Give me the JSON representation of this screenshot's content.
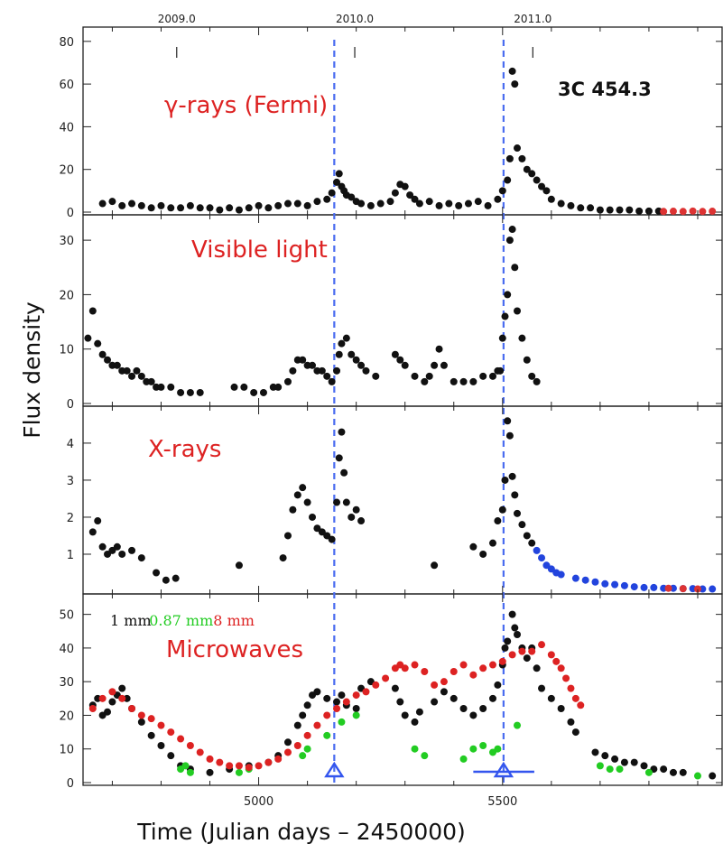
{
  "chart_data": {
    "type": "scatter",
    "source": "3C 454.3",
    "xlabel": "Time (Julian days – 2450000)",
    "ylabel": "Flux density",
    "xlim": [
      4640,
      5950
    ],
    "x_ticks": [
      5000,
      5500
    ],
    "top_axis": {
      "labels": [
        "2009.0",
        "2010.0",
        "2011.0"
      ],
      "x": [
        4832,
        5197,
        5562
      ]
    },
    "event_lines_x": [
      5155,
      5502
    ],
    "triangle_markers": [
      {
        "x": 5155,
        "error_bar": false
      },
      {
        "x": 5502,
        "error_bar": true,
        "x_range": [
          5440,
          5565
        ]
      }
    ],
    "panels": [
      {
        "title": "γ-rays (Fermi)",
        "ylim": [
          0,
          85
        ],
        "yticks": [
          0,
          20,
          40,
          60,
          80
        ],
        "yticklabels": [
          "0",
          "20",
          "40",
          "60",
          "80"
        ],
        "series": [
          {
            "color": "#111111",
            "x": [
              4680,
              4700,
              4720,
              4740,
              4760,
              4780,
              4800,
              4820,
              4840,
              4860,
              4880,
              4900,
              4920,
              4940,
              4960,
              4980,
              5000,
              5020,
              5040,
              5060,
              5080,
              5100,
              5120,
              5140,
              5150,
              5160,
              5165,
              5170,
              5175,
              5180,
              5190,
              5200,
              5210,
              5230,
              5250,
              5270,
              5280,
              5290,
              5300,
              5310,
              5320,
              5330,
              5350,
              5370,
              5390,
              5410,
              5430,
              5450,
              5470,
              5490,
              5500,
              5510,
              5515,
              5520,
              5525,
              5530,
              5540,
              5550,
              5560,
              5570,
              5580,
              5590,
              5600,
              5620,
              5640,
              5660,
              5680,
              5700,
              5720,
              5740,
              5760,
              5780,
              5800,
              5820
            ],
            "y": [
              4,
              5,
              3,
              4,
              3,
              2,
              3,
              2,
              2,
              3,
              2,
              2,
              1,
              2,
              1,
              2,
              3,
              2,
              3,
              4,
              4,
              3,
              5,
              6,
              9,
              14,
              18,
              12,
              10,
              8,
              7,
              5,
              4,
              3,
              4,
              5,
              9,
              13,
              12,
              8,
              6,
              4,
              5,
              3,
              4,
              3,
              4,
              5,
              3,
              6,
              10,
              15,
              25,
              66,
              60,
              30,
              25,
              20,
              18,
              15,
              12,
              10,
              6,
              4,
              3,
              2,
              2,
              1,
              1,
              1,
              1,
              0.5,
              0.5,
              0.5
            ]
          },
          {
            "color": "#dd3333",
            "x": [
              5830,
              5850,
              5870,
              5890,
              5910,
              5930
            ],
            "y": [
              0.3,
              0.4,
              0.3,
              0.5,
              0.3,
              0.4
            ]
          }
        ]
      },
      {
        "title": "Visible light",
        "ylim": [
          0,
          34
        ],
        "yticks": [
          0,
          10,
          20,
          30
        ],
        "yticklabels": [
          "0",
          "10",
          "20",
          "30"
        ],
        "series": [
          {
            "color": "#111111",
            "x": [
              4650,
              4660,
              4670,
              4680,
              4690,
              4700,
              4710,
              4720,
              4730,
              4740,
              4750,
              4760,
              4770,
              4780,
              4790,
              4800,
              4820,
              4840,
              4860,
              4880,
              4950,
              4970,
              4990,
              5010,
              5030,
              5040,
              5060,
              5070,
              5080,
              5090,
              5100,
              5110,
              5120,
              5130,
              5140,
              5150,
              5160,
              5165,
              5170,
              5180,
              5190,
              5200,
              5210,
              5220,
              5240,
              5280,
              5290,
              5300,
              5320,
              5340,
              5350,
              5360,
              5370,
              5380,
              5400,
              5420,
              5440,
              5460,
              5480,
              5490,
              5495,
              5500,
              5505,
              5510,
              5515,
              5520,
              5525,
              5530,
              5540,
              5550,
              5560,
              5570
            ],
            "y": [
              12,
              17,
              11,
              9,
              8,
              7,
              7,
              6,
              6,
              5,
              6,
              5,
              4,
              4,
              3,
              3,
              3,
              2,
              2,
              2,
              3,
              3,
              2,
              2,
              3,
              3,
              4,
              6,
              8,
              8,
              7,
              7,
              6,
              6,
              5,
              4,
              6,
              9,
              11,
              12,
              9,
              8,
              7,
              6,
              5,
              9,
              8,
              7,
              5,
              4,
              5,
              7,
              10,
              7,
              4,
              4,
              4,
              5,
              5,
              6,
              6,
              12,
              16,
              20,
              30,
              32,
              25,
              17,
              12,
              8,
              5,
              4
            ]
          }
        ]
      },
      {
        "title": "X-rays",
        "ylim": [
          0,
          4.9
        ],
        "yticks": [
          1,
          2,
          3,
          4
        ],
        "yticklabels": [
          "1",
          "2",
          "3",
          "4"
        ],
        "series": [
          {
            "color": "#111111",
            "x": [
              4660,
              4670,
              4680,
              4690,
              4700,
              4710,
              4720,
              4740,
              4760,
              4790,
              4810,
              4830,
              4960,
              5050,
              5060,
              5070,
              5080,
              5090,
              5100,
              5110,
              5120,
              5130,
              5140,
              5150,
              5160,
              5165,
              5170,
              5175,
              5180,
              5190,
              5200,
              5210,
              5360,
              5440,
              5460,
              5480,
              5490,
              5500,
              5505,
              5510,
              5515,
              5520,
              5525,
              5530,
              5540,
              5550,
              5560
            ],
            "y": [
              1.6,
              1.9,
              1.2,
              1.0,
              1.1,
              1.2,
              1.0,
              1.1,
              0.9,
              0.5,
              0.3,
              0.35,
              0.7,
              0.9,
              1.5,
              2.2,
              2.6,
              2.8,
              2.4,
              2.0,
              1.7,
              1.6,
              1.5,
              1.4,
              2.4,
              3.6,
              4.3,
              3.2,
              2.4,
              2.0,
              2.2,
              1.9,
              0.7,
              1.2,
              1.0,
              1.3,
              1.9,
              2.2,
              3.0,
              4.6,
              4.2,
              3.1,
              2.6,
              2.1,
              1.8,
              1.5,
              1.3
            ]
          },
          {
            "color": "#2244dd",
            "x": [
              5570,
              5580,
              5590,
              5600,
              5610,
              5620,
              5650,
              5670,
              5690,
              5710,
              5730,
              5750,
              5770,
              5790,
              5810,
              5830,
              5850,
              5870,
              5890,
              5910,
              5930
            ],
            "y": [
              1.1,
              0.9,
              0.7,
              0.6,
              0.5,
              0.45,
              0.35,
              0.3,
              0.25,
              0.2,
              0.18,
              0.15,
              0.12,
              0.1,
              0.1,
              0.08,
              0.08,
              0.07,
              0.07,
              0.06,
              0.06
            ]
          },
          {
            "color": "#dd3333",
            "x": [
              5840,
              5870,
              5900
            ],
            "y": [
              0.08,
              0.07,
              0.06
            ]
          }
        ]
      },
      {
        "title": "Microwaves",
        "ylim": [
          0,
          55
        ],
        "yticks": [
          0,
          10,
          20,
          30,
          40,
          50
        ],
        "yticklabels": [
          "0",
          "10",
          "20",
          "30",
          "40",
          "50"
        ],
        "legend": [
          {
            "name": "1 mm",
            "color": "#111111"
          },
          {
            "name": "0.87 mm",
            "color": "#22cc22"
          },
          {
            "name": "8 mm",
            "color": "#dd2222"
          }
        ],
        "series": [
          {
            "name": "1 mm",
            "color": "#111111",
            "x": [
              4660,
              4670,
              4680,
              4690,
              4700,
              4710,
              4720,
              4730,
              4740,
              4760,
              4780,
              4800,
              4820,
              4840,
              4860,
              4900,
              4940,
              4980,
              5020,
              5040,
              5060,
              5080,
              5090,
              5100,
              5110,
              5120,
              5140,
              5160,
              5170,
              5180,
              5200,
              5210,
              5230,
              5280,
              5290,
              5300,
              5320,
              5330,
              5360,
              5380,
              5400,
              5420,
              5440,
              5460,
              5480,
              5490,
              5500,
              5505,
              5510,
              5520,
              5525,
              5530,
              5540,
              5550,
              5560,
              5570,
              5580,
              5600,
              5620,
              5640,
              5650,
              5690,
              5710,
              5730,
              5750,
              5770,
              5790,
              5810,
              5830,
              5850,
              5870,
              5930
            ],
            "y": [
              23,
              25,
              20,
              21,
              24,
              26,
              28,
              25,
              22,
              18,
              14,
              11,
              8,
              5,
              4,
              3,
              4,
              5,
              6,
              8,
              12,
              17,
              20,
              23,
              26,
              27,
              25,
              24,
              26,
              23,
              22,
              28,
              30,
              28,
              24,
              20,
              18,
              21,
              24,
              27,
              25,
              22,
              20,
              22,
              25,
              29,
              35,
              40,
              42,
              50,
              46,
              44,
              40,
              37,
              40,
              34,
              28,
              25,
              22,
              18,
              15,
              9,
              8,
              7,
              6,
              6,
              5,
              4,
              4,
              3,
              3,
              2
            ]
          },
          {
            "name": "0.87 mm",
            "color": "#22cc22",
            "x": [
              4840,
              4850,
              4860,
              4960,
              4980,
              5090,
              5100,
              5140,
              5170,
              5200,
              5320,
              5340,
              5420,
              5440,
              5460,
              5480,
              5490,
              5530,
              5700,
              5720,
              5740,
              5800,
              5900
            ],
            "y": [
              4,
              5,
              3,
              3,
              4,
              8,
              10,
              14,
              18,
              20,
              10,
              8,
              7,
              10,
              11,
              9,
              10,
              17,
              5,
              4,
              4,
              3,
              2
            ]
          },
          {
            "name": "8 mm",
            "color": "#dd2222",
            "x": [
              4660,
              4680,
              4700,
              4720,
              4740,
              4760,
              4780,
              4800,
              4820,
              4840,
              4860,
              4880,
              4900,
              4920,
              4940,
              4960,
              4980,
              5000,
              5020,
              5040,
              5060,
              5080,
              5100,
              5120,
              5140,
              5160,
              5180,
              5200,
              5220,
              5240,
              5260,
              5280,
              5290,
              5300,
              5320,
              5340,
              5360,
              5380,
              5400,
              5420,
              5440,
              5460,
              5480,
              5500,
              5520,
              5540,
              5560,
              5580,
              5600,
              5610,
              5620,
              5630,
              5640,
              5650,
              5660
            ],
            "y": [
              22,
              25,
              27,
              25,
              22,
              20,
              19,
              17,
              15,
              13,
              11,
              9,
              7,
              6,
              5,
              5,
              4.5,
              5,
              6,
              7,
              9,
              11,
              14,
              17,
              20,
              22,
              24,
              26,
              27,
              29,
              31,
              34,
              35,
              34,
              35,
              33,
              29,
              30,
              33,
              35,
              32,
              34,
              35,
              36,
              38,
              39,
              39,
              41,
              38,
              36,
              34,
              31,
              28,
              25,
              23
            ]
          }
        ]
      }
    ]
  }
}
